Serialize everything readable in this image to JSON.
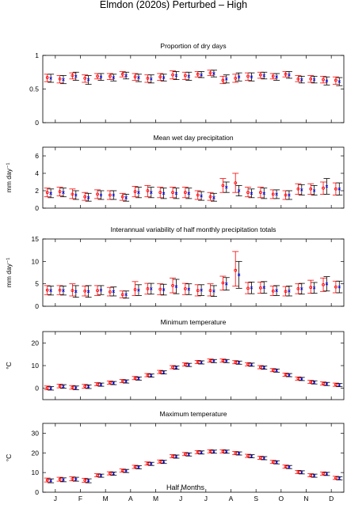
{
  "figure": {
    "title": "Elmdon (2020s) Perturbed – High",
    "xlabel": "Half Months",
    "month_labels": [
      "J",
      "F",
      "M",
      "A",
      "M",
      "J",
      "J",
      "A",
      "S",
      "O",
      "N",
      "D"
    ]
  },
  "colors": {
    "control": "#ff0000",
    "scenario": "#000000",
    "marker_control": "#ff0000",
    "marker_scenario": "#0000ff"
  },
  "chart_data": [
    {
      "type": "scatter",
      "title": "Proportion of dry days",
      "ylabel": "",
      "ylim": [
        0,
        1
      ],
      "yticks": [
        0,
        0.5,
        1
      ],
      "ytick_labels": [
        "0",
        "0.5",
        "1"
      ],
      "x": [
        1,
        2,
        3,
        4,
        5,
        6,
        7,
        8,
        9,
        10,
        11,
        12,
        13,
        14,
        15,
        16,
        17,
        18,
        19,
        20,
        21,
        22,
        23,
        24
      ],
      "series": [
        {
          "values": [
            0.67,
            0.65,
            0.7,
            0.66,
            0.69,
            0.69,
            0.72,
            0.68,
            0.66,
            0.68,
            0.71,
            0.7,
            0.72,
            0.74,
            0.63,
            0.66,
            0.69,
            0.71,
            0.69,
            0.72,
            0.65,
            0.65,
            0.64,
            0.63
          ],
          "lower": [
            0.61,
            0.59,
            0.65,
            0.6,
            0.65,
            0.64,
            0.68,
            0.63,
            0.6,
            0.63,
            0.65,
            0.64,
            0.68,
            0.7,
            0.58,
            0.6,
            0.63,
            0.66,
            0.65,
            0.68,
            0.61,
            0.6,
            0.59,
            0.57
          ],
          "upper": [
            0.72,
            0.7,
            0.74,
            0.71,
            0.73,
            0.73,
            0.76,
            0.73,
            0.71,
            0.73,
            0.77,
            0.75,
            0.76,
            0.78,
            0.69,
            0.72,
            0.74,
            0.75,
            0.73,
            0.76,
            0.7,
            0.7,
            0.69,
            0.68
          ]
        },
        {
          "values": [
            0.66,
            0.64,
            0.69,
            0.64,
            0.68,
            0.67,
            0.7,
            0.67,
            0.65,
            0.67,
            0.7,
            0.69,
            0.71,
            0.73,
            0.65,
            0.68,
            0.68,
            0.7,
            0.68,
            0.71,
            0.64,
            0.64,
            0.62,
            0.61
          ],
          "lower": [
            0.6,
            0.58,
            0.63,
            0.57,
            0.63,
            0.62,
            0.65,
            0.61,
            0.59,
            0.62,
            0.64,
            0.63,
            0.67,
            0.68,
            0.59,
            0.62,
            0.62,
            0.65,
            0.63,
            0.66,
            0.59,
            0.59,
            0.56,
            0.55
          ],
          "upper": [
            0.72,
            0.7,
            0.75,
            0.7,
            0.73,
            0.72,
            0.75,
            0.72,
            0.71,
            0.72,
            0.76,
            0.75,
            0.76,
            0.78,
            0.71,
            0.74,
            0.74,
            0.75,
            0.73,
            0.76,
            0.69,
            0.69,
            0.68,
            0.67
          ]
        }
      ]
    },
    {
      "type": "scatter",
      "title": "Mean wet day precipitation",
      "ylabel": "mm day⁻¹",
      "ylim": [
        0,
        7
      ],
      "yticks": [
        0,
        2,
        4,
        6
      ],
      "ytick_labels": [
        "0",
        "2",
        "4",
        "6"
      ],
      "x": [
        1,
        2,
        3,
        4,
        5,
        6,
        7,
        8,
        9,
        10,
        11,
        12,
        13,
        14,
        15,
        16,
        17,
        18,
        19,
        20,
        21,
        22,
        23,
        24
      ],
      "series": [
        {
          "values": [
            1.8,
            1.9,
            1.6,
            1.3,
            1.6,
            1.5,
            1.3,
            1.9,
            2.0,
            1.8,
            1.8,
            1.8,
            1.5,
            1.3,
            2.6,
            2.9,
            1.8,
            1.8,
            1.6,
            1.5,
            2.2,
            2.2,
            2.3,
            2.2
          ],
          "lower": [
            1.3,
            1.4,
            1.1,
            0.9,
            1.1,
            1.0,
            0.9,
            1.3,
            1.3,
            1.2,
            1.2,
            1.2,
            1.0,
            0.9,
            1.8,
            1.8,
            1.3,
            1.2,
            1.1,
            1.0,
            1.6,
            1.6,
            1.6,
            1.5
          ],
          "upper": [
            2.3,
            2.4,
            2.2,
            1.8,
            2.1,
            2.0,
            1.7,
            2.5,
            2.6,
            2.4,
            2.4,
            2.4,
            2.0,
            1.8,
            3.4,
            4.0,
            2.4,
            2.4,
            2.1,
            2.0,
            2.8,
            2.8,
            3.0,
            2.9
          ]
        },
        {
          "values": [
            1.7,
            1.8,
            1.5,
            1.2,
            1.5,
            1.5,
            1.2,
            1.8,
            1.8,
            1.7,
            1.7,
            1.7,
            1.4,
            1.2,
            2.4,
            2.0,
            1.7,
            1.7,
            1.6,
            1.5,
            2.1,
            2.0,
            2.5,
            2.2
          ],
          "lower": [
            1.2,
            1.3,
            1.0,
            0.8,
            1.0,
            1.0,
            0.8,
            1.2,
            1.2,
            1.1,
            1.1,
            1.1,
            0.9,
            0.8,
            1.8,
            1.4,
            1.2,
            1.1,
            1.1,
            1.0,
            1.5,
            1.5,
            1.6,
            1.5
          ],
          "upper": [
            2.2,
            2.3,
            2.0,
            1.7,
            2.0,
            2.0,
            1.6,
            2.4,
            2.4,
            2.3,
            2.3,
            2.3,
            1.9,
            1.7,
            3.0,
            2.6,
            2.2,
            2.3,
            2.1,
            2.0,
            2.7,
            2.6,
            3.4,
            2.9
          ]
        }
      ]
    },
    {
      "type": "scatter",
      "title": "Interannual variability of half monthly precipitation totals",
      "ylabel": "mm day⁻¹",
      "ylim": [
        0,
        15
      ],
      "yticks": [
        0,
        5,
        10,
        15
      ],
      "ytick_labels": [
        "0",
        "5",
        "10",
        "15"
      ],
      "x": [
        1,
        2,
        3,
        4,
        5,
        6,
        7,
        8,
        9,
        10,
        11,
        12,
        13,
        14,
        15,
        16,
        17,
        18,
        19,
        20,
        21,
        22,
        23,
        24
      ],
      "series": [
        {
          "values": [
            3.6,
            3.6,
            3.5,
            3.4,
            3.5,
            3.2,
            2.6,
            3.7,
            3.9,
            3.8,
            4.6,
            3.9,
            3.5,
            3.5,
            5.2,
            8.0,
            4.0,
            4.1,
            3.4,
            3.3,
            3.9,
            4.2,
            4.8,
            4.3
          ],
          "lower": [
            2.6,
            2.6,
            2.3,
            2.3,
            2.4,
            2.3,
            1.9,
            2.4,
            2.7,
            2.6,
            3.0,
            2.6,
            2.3,
            2.3,
            3.6,
            4.5,
            2.8,
            2.9,
            2.4,
            2.3,
            2.8,
            2.9,
            3.3,
            3.0
          ],
          "upper": [
            4.6,
            4.6,
            5.0,
            4.5,
            4.6,
            4.2,
            3.4,
            5.5,
            5.1,
            5.0,
            6.3,
            5.1,
            4.8,
            5.0,
            6.7,
            12.2,
            5.3,
            5.4,
            4.5,
            4.4,
            5.0,
            5.8,
            6.3,
            5.6
          ]
        },
        {
          "values": [
            3.5,
            3.5,
            3.3,
            3.3,
            3.6,
            3.3,
            2.6,
            3.6,
            3.9,
            3.7,
            4.4,
            3.8,
            3.6,
            3.4,
            5.0,
            7.0,
            4.1,
            4.2,
            3.5,
            3.4,
            3.9,
            4.1,
            5.0,
            4.3
          ],
          "lower": [
            2.5,
            2.5,
            2.0,
            2.0,
            2.6,
            2.3,
            1.8,
            2.4,
            2.7,
            2.5,
            2.8,
            2.6,
            2.4,
            2.2,
            3.6,
            4.0,
            2.8,
            2.9,
            2.4,
            2.3,
            2.7,
            2.9,
            3.4,
            3.0
          ],
          "upper": [
            4.5,
            4.5,
            4.6,
            4.6,
            4.6,
            4.3,
            3.4,
            4.8,
            5.1,
            4.9,
            6.0,
            5.0,
            4.8,
            4.6,
            6.4,
            10.0,
            5.4,
            5.5,
            4.6,
            4.5,
            5.1,
            5.3,
            6.6,
            5.6
          ]
        }
      ]
    },
    {
      "type": "scatter",
      "title": "Minimum temperature",
      "ylabel": "°C",
      "ylim": [
        -5,
        25
      ],
      "yticks": [
        0,
        10,
        20
      ],
      "ytick_labels": [
        "0",
        "10",
        "20"
      ],
      "x": [
        1,
        2,
        3,
        4,
        5,
        6,
        7,
        8,
        9,
        10,
        11,
        12,
        13,
        14,
        15,
        16,
        17,
        18,
        19,
        20,
        21,
        22,
        23,
        24
      ],
      "series": [
        {
          "values": [
            0.2,
            1.0,
            0.4,
            0.9,
            1.8,
            2.5,
            3.2,
            4.5,
            5.8,
            7.2,
            9.3,
            10.5,
            11.6,
            12.2,
            12.2,
            11.5,
            10.6,
            9.3,
            8.0,
            6.0,
            4.3,
            2.8,
            2.1,
            1.6
          ],
          "lower": [
            -0.6,
            0.2,
            -0.4,
            0.1,
            1.1,
            1.8,
            2.5,
            3.8,
            5.1,
            6.5,
            8.6,
            9.8,
            10.9,
            11.5,
            11.5,
            10.8,
            9.9,
            8.6,
            7.3,
            5.3,
            3.6,
            2.1,
            1.4,
            0.9
          ],
          "upper": [
            1.0,
            1.8,
            1.2,
            1.7,
            2.5,
            3.2,
            3.9,
            5.2,
            6.5,
            7.9,
            10.0,
            11.2,
            12.3,
            12.9,
            12.9,
            12.2,
            11.3,
            10.0,
            8.7,
            6.7,
            5.0,
            3.5,
            2.8,
            2.3
          ]
        },
        {
          "values": [
            0.0,
            0.8,
            0.2,
            0.7,
            1.6,
            2.3,
            3.0,
            4.3,
            5.6,
            7.0,
            9.1,
            10.3,
            11.4,
            12.0,
            12.0,
            11.3,
            10.4,
            9.1,
            7.8,
            5.8,
            4.1,
            2.6,
            1.9,
            1.4
          ],
          "lower": [
            -0.8,
            0.0,
            -0.6,
            -0.1,
            0.9,
            1.6,
            2.3,
            3.6,
            4.9,
            6.3,
            8.4,
            9.6,
            10.7,
            11.3,
            11.3,
            10.6,
            9.7,
            8.4,
            7.1,
            5.1,
            3.4,
            1.9,
            1.2,
            0.7
          ],
          "upper": [
            0.8,
            1.6,
            1.0,
            1.5,
            2.3,
            3.0,
            3.7,
            5.0,
            6.3,
            7.7,
            9.8,
            11.0,
            12.1,
            12.7,
            12.7,
            12.0,
            11.1,
            9.8,
            8.5,
            6.5,
            4.8,
            3.3,
            2.6,
            2.1
          ]
        }
      ]
    },
    {
      "type": "scatter",
      "title": "Maximum temperature",
      "ylabel": "°C",
      "ylim": [
        0,
        35
      ],
      "yticks": [
        0,
        10,
        20,
        30
      ],
      "ytick_labels": [
        "0",
        "10",
        "20",
        "30"
      ],
      "x": [
        1,
        2,
        3,
        4,
        5,
        6,
        7,
        8,
        9,
        10,
        11,
        12,
        13,
        14,
        15,
        16,
        17,
        18,
        19,
        20,
        21,
        22,
        23,
        24
      ],
      "series": [
        {
          "values": [
            6.2,
            6.6,
            6.8,
            6.1,
            8.6,
            9.6,
            11.0,
            12.9,
            14.6,
            15.6,
            18.3,
            19.4,
            20.4,
            20.8,
            20.8,
            19.9,
            18.5,
            17.5,
            15.4,
            13.0,
            10.3,
            8.6,
            9.5,
            7.3
          ],
          "lower": [
            5.2,
            5.6,
            5.8,
            5.1,
            7.8,
            8.8,
            10.2,
            12.1,
            13.8,
            14.8,
            17.5,
            18.6,
            19.6,
            20.0,
            20.0,
            19.1,
            17.7,
            16.7,
            14.6,
            12.2,
            9.5,
            7.8,
            8.7,
            6.5
          ],
          "upper": [
            7.2,
            7.6,
            7.8,
            7.1,
            9.4,
            10.4,
            11.8,
            13.7,
            15.4,
            16.4,
            19.1,
            20.2,
            21.2,
            21.6,
            21.6,
            20.7,
            19.3,
            18.3,
            16.2,
            13.8,
            11.1,
            9.4,
            10.3,
            8.1
          ]
        },
        {
          "values": [
            5.8,
            6.3,
            6.6,
            5.8,
            8.4,
            9.4,
            10.8,
            12.7,
            14.4,
            15.4,
            18.1,
            19.2,
            20.2,
            20.6,
            20.6,
            19.7,
            18.3,
            17.3,
            15.2,
            12.8,
            10.1,
            8.4,
            9.3,
            7.1
          ],
          "lower": [
            4.8,
            5.3,
            5.6,
            4.8,
            7.6,
            8.6,
            10.0,
            11.9,
            13.6,
            14.6,
            17.3,
            18.4,
            19.4,
            19.8,
            19.8,
            18.9,
            17.5,
            16.5,
            14.4,
            12.0,
            9.3,
            7.6,
            8.5,
            6.3
          ],
          "upper": [
            6.8,
            7.3,
            7.6,
            6.8,
            9.2,
            10.2,
            11.6,
            13.5,
            15.2,
            16.2,
            18.9,
            20.0,
            21.0,
            21.4,
            21.4,
            20.5,
            19.1,
            18.1,
            16.0,
            13.6,
            10.9,
            9.2,
            10.1,
            7.9
          ]
        }
      ]
    }
  ]
}
